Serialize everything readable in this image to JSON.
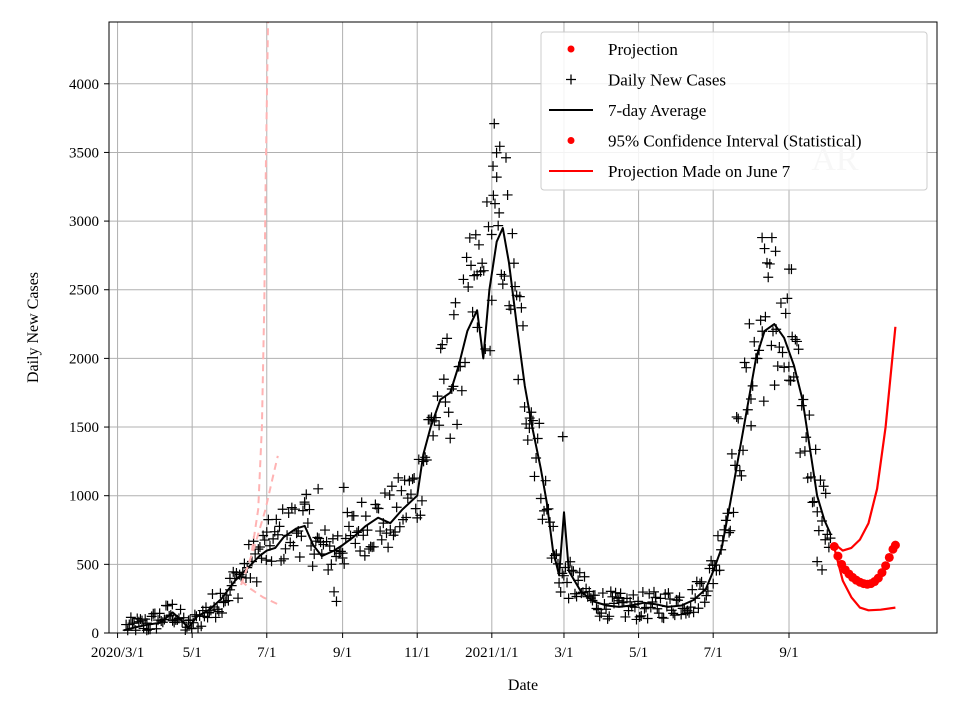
{
  "chart_data": {
    "type": "scatter",
    "title": "",
    "watermark": "AR",
    "xlabel": "Date",
    "ylabel": "Daily New Cases",
    "x_start": "2020-02-23",
    "x_end": "2021-12-31",
    "ylim": [
      0,
      4450
    ],
    "grid": true,
    "legend_position": "top-right",
    "x_ticks": [
      {
        "date": "2020-03-01",
        "label": "2020/3/1"
      },
      {
        "date": "2020-05-01",
        "label": "5/1"
      },
      {
        "date": "2020-07-01",
        "label": "7/1"
      },
      {
        "date": "2020-09-01",
        "label": "9/1"
      },
      {
        "date": "2020-11-01",
        "label": "11/1"
      },
      {
        "date": "2021-01-01",
        "label": "2021/1/1"
      },
      {
        "date": "2021-03-01",
        "label": "3/1"
      },
      {
        "date": "2021-05-01",
        "label": "5/1"
      },
      {
        "date": "2021-07-01",
        "label": "7/1"
      },
      {
        "date": "2021-09-01",
        "label": "9/1"
      }
    ],
    "y_ticks": [
      0,
      500,
      1000,
      1500,
      2000,
      2500,
      3000,
      3500,
      4000
    ],
    "legend": [
      {
        "label": "Projection",
        "marker": "dot",
        "color": "#ff0000"
      },
      {
        "label": "Daily New Cases",
        "marker": "plus",
        "color": "#000000"
      },
      {
        "label": "7-day Average",
        "marker": "line",
        "color": "#000000"
      },
      {
        "label": "95% Confidence Interval (Statistical)",
        "marker": "dot",
        "color": "#ff0000"
      },
      {
        "label": "Projection Made on June 7",
        "marker": "line",
        "color": "#ff0000"
      }
    ],
    "series": [
      {
        "name": "7-day Average",
        "kind": "line",
        "color": "#000000",
        "points": [
          [
            "2020-03-06",
            20
          ],
          [
            "2020-03-15",
            40
          ],
          [
            "2020-03-25",
            60
          ],
          [
            "2020-04-05",
            75
          ],
          [
            "2020-04-15",
            150
          ],
          [
            "2020-04-20",
            110
          ],
          [
            "2020-04-28",
            40
          ],
          [
            "2020-05-05",
            120
          ],
          [
            "2020-05-15",
            170
          ],
          [
            "2020-05-25",
            250
          ],
          [
            "2020-06-05",
            380
          ],
          [
            "2020-06-15",
            470
          ],
          [
            "2020-06-25",
            560
          ],
          [
            "2020-07-01",
            600
          ],
          [
            "2020-07-08",
            620
          ],
          [
            "2020-07-15",
            700
          ],
          [
            "2020-07-25",
            760
          ],
          [
            "2020-08-01",
            780
          ],
          [
            "2020-08-08",
            640
          ],
          [
            "2020-08-15",
            560
          ],
          [
            "2020-08-25",
            600
          ],
          [
            "2020-09-01",
            640
          ],
          [
            "2020-09-10",
            700
          ],
          [
            "2020-09-20",
            780
          ],
          [
            "2020-09-30",
            840
          ],
          [
            "2020-10-10",
            800
          ],
          [
            "2020-10-20",
            900
          ],
          [
            "2020-11-01",
            1000
          ],
          [
            "2020-11-06",
            1300
          ],
          [
            "2020-11-12",
            1500
          ],
          [
            "2020-11-20",
            1700
          ],
          [
            "2020-11-28",
            1750
          ],
          [
            "2020-12-05",
            1950
          ],
          [
            "2020-12-12",
            2200
          ],
          [
            "2020-12-20",
            2350
          ],
          [
            "2020-12-25",
            2000
          ],
          [
            "2020-12-30",
            2500
          ],
          [
            "2021-01-05",
            2850
          ],
          [
            "2021-01-10",
            2950
          ],
          [
            "2021-01-15",
            2700
          ],
          [
            "2021-01-22",
            2200
          ],
          [
            "2021-01-28",
            1800
          ],
          [
            "2021-02-03",
            1500
          ],
          [
            "2021-02-10",
            1200
          ],
          [
            "2021-02-15",
            950
          ],
          [
            "2021-02-20",
            600
          ],
          [
            "2021-02-25",
            420
          ],
          [
            "2021-03-01",
            880
          ],
          [
            "2021-03-05",
            450
          ],
          [
            "2021-03-15",
            300
          ],
          [
            "2021-03-25",
            230
          ],
          [
            "2021-04-05",
            200
          ],
          [
            "2021-04-15",
            190
          ],
          [
            "2021-04-25",
            200
          ],
          [
            "2021-05-05",
            220
          ],
          [
            "2021-05-15",
            210
          ],
          [
            "2021-05-25",
            190
          ],
          [
            "2021-06-05",
            200
          ],
          [
            "2021-06-15",
            240
          ],
          [
            "2021-06-25",
            320
          ],
          [
            "2021-07-01",
            450
          ],
          [
            "2021-07-08",
            620
          ],
          [
            "2021-07-15",
            950
          ],
          [
            "2021-07-22",
            1300
          ],
          [
            "2021-07-30",
            1700
          ],
          [
            "2021-08-05",
            2000
          ],
          [
            "2021-08-12",
            2200
          ],
          [
            "2021-08-20",
            2250
          ],
          [
            "2021-08-28",
            2150
          ],
          [
            "2021-09-05",
            1950
          ],
          [
            "2021-09-12",
            1700
          ],
          [
            "2021-09-18",
            1350
          ],
          [
            "2021-09-24",
            1000
          ],
          [
            "2021-09-30",
            820
          ],
          [
            "2021-10-05",
            720
          ]
        ]
      },
      {
        "name": "Projection",
        "kind": "dots",
        "color": "#ff0000",
        "points": [
          [
            "2021-10-08",
            630
          ],
          [
            "2021-10-11",
            560
          ],
          [
            "2021-10-14",
            500
          ],
          [
            "2021-10-17",
            460
          ],
          [
            "2021-10-20",
            430
          ],
          [
            "2021-10-23",
            405
          ],
          [
            "2021-10-26",
            385
          ],
          [
            "2021-10-29",
            370
          ],
          [
            "2021-11-01",
            360
          ],
          [
            "2021-11-04",
            355
          ],
          [
            "2021-11-07",
            360
          ],
          [
            "2021-11-10",
            375
          ],
          [
            "2021-11-13",
            400
          ],
          [
            "2021-11-16",
            440
          ],
          [
            "2021-11-19",
            490
          ],
          [
            "2021-11-22",
            550
          ],
          [
            "2021-11-25",
            610
          ],
          [
            "2021-11-27",
            640
          ]
        ]
      },
      {
        "name": "95% Confidence Interval (Statistical)",
        "kind": "band-upper",
        "color": "#ff0000",
        "points": [
          [
            "2021-10-08",
            650
          ],
          [
            "2021-10-15",
            600
          ],
          [
            "2021-10-22",
            620
          ],
          [
            "2021-10-29",
            680
          ],
          [
            "2021-11-05",
            800
          ],
          [
            "2021-11-12",
            1050
          ],
          [
            "2021-11-19",
            1500
          ],
          [
            "2021-11-27",
            2230
          ]
        ]
      },
      {
        "name": "95% Confidence Interval (Statistical)",
        "kind": "band-lower",
        "color": "#ff0000",
        "points": [
          [
            "2021-10-08",
            620
          ],
          [
            "2021-10-15",
            380
          ],
          [
            "2021-10-22",
            260
          ],
          [
            "2021-10-29",
            185
          ],
          [
            "2021-11-05",
            165
          ],
          [
            "2021-11-15",
            170
          ],
          [
            "2021-11-27",
            185
          ]
        ]
      },
      {
        "name": "Projection Made on June 7",
        "kind": "dashed-upper",
        "color": "#ffb3b3",
        "points": [
          [
            "2020-06-10",
            350
          ],
          [
            "2020-06-18",
            550
          ],
          [
            "2020-06-24",
            900
          ],
          [
            "2020-06-27",
            1500
          ],
          [
            "2020-06-29",
            2400
          ],
          [
            "2020-06-30",
            3200
          ],
          [
            "2020-07-02",
            4450
          ]
        ]
      },
      {
        "name": "Projection Made on June 7",
        "kind": "dashed-mid",
        "color": "#ffb3b3",
        "points": [
          [
            "2020-06-10",
            350
          ],
          [
            "2020-06-20",
            600
          ],
          [
            "2020-06-30",
            900
          ],
          [
            "2020-07-05",
            1100
          ],
          [
            "2020-07-10",
            1290
          ]
        ]
      },
      {
        "name": "Projection Made on June 7",
        "kind": "dashed-lower",
        "color": "#ffb3b3",
        "points": [
          [
            "2020-06-10",
            380
          ],
          [
            "2020-06-18",
            320
          ],
          [
            "2020-06-28",
            260
          ],
          [
            "2020-07-10",
            210
          ]
        ]
      }
    ],
    "scatter_anchors": [
      [
        "2020-03-08",
        40
      ],
      [
        "2020-03-25",
        60
      ],
      [
        "2020-04-15",
        150
      ],
      [
        "2020-04-28",
        40
      ],
      [
        "2020-05-15",
        170
      ],
      [
        "2020-06-01",
        320
      ],
      [
        "2020-06-15",
        480
      ],
      [
        "2020-07-01",
        620
      ],
      [
        "2020-07-15",
        720
      ],
      [
        "2020-08-01",
        800
      ],
      [
        "2020-08-15",
        580
      ],
      [
        "2020-09-01",
        650
      ],
      [
        "2020-09-20",
        800
      ],
      [
        "2020-10-10",
        820
      ],
      [
        "2020-11-01",
        1050
      ],
      [
        "2020-11-15",
        1600
      ],
      [
        "2020-12-01",
        1900
      ],
      [
        "2020-12-15",
        2350
      ],
      [
        "2021-01-01",
        2700
      ],
      [
        "2021-01-10",
        3100
      ],
      [
        "2021-01-20",
        2300
      ],
      [
        "2021-02-01",
        1700
      ],
      [
        "2021-02-15",
        900
      ],
      [
        "2021-02-25",
        420
      ],
      [
        "2021-03-10",
        360
      ],
      [
        "2021-03-25",
        230
      ],
      [
        "2021-04-15",
        190
      ],
      [
        "2021-05-15",
        200
      ],
      [
        "2021-06-15",
        240
      ],
      [
        "2021-07-01",
        450
      ],
      [
        "2021-07-15",
        1000
      ],
      [
        "2021-08-01",
        1900
      ],
      [
        "2021-08-15",
        2300
      ],
      [
        "2021-09-01",
        1950
      ],
      [
        "2021-09-15",
        1450
      ],
      [
        "2021-10-01",
        800
      ],
      [
        "2021-10-05",
        720
      ]
    ],
    "scatter_highlights": [
      [
        "2021-01-02",
        3400
      ],
      [
        "2021-01-03",
        3710
      ],
      [
        "2021-01-05",
        3320
      ],
      [
        "2021-01-07",
        3060
      ],
      [
        "2020-12-20",
        2610
      ],
      [
        "2021-08-10",
        2880
      ],
      [
        "2021-08-12",
        2800
      ],
      [
        "2021-08-18",
        2880
      ],
      [
        "2021-08-21",
        2780
      ],
      [
        "2021-09-01",
        2650
      ],
      [
        "2021-09-03",
        2650
      ],
      [
        "2021-02-28",
        1430
      ],
      [
        "2020-08-25",
        300
      ],
      [
        "2020-08-27",
        230
      ],
      [
        "2020-08-12",
        1050
      ],
      [
        "2020-09-02",
        1060
      ],
      [
        "2021-09-24",
        520
      ],
      [
        "2021-09-28",
        460
      ]
    ]
  }
}
